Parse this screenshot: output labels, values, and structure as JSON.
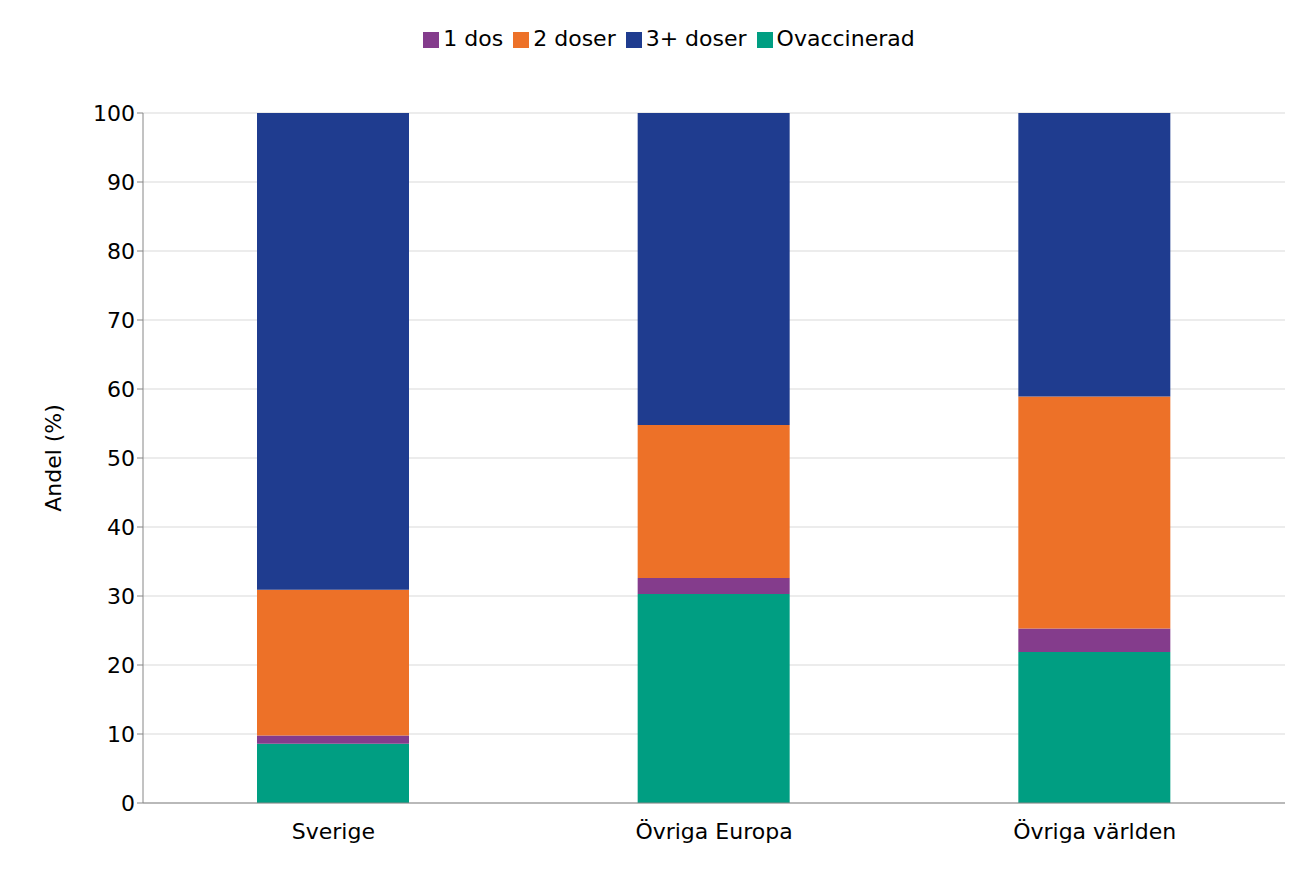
{
  "chart_data": {
    "type": "bar",
    "stacked": true,
    "y_label": "Andel (%)",
    "categories": [
      "Sverige",
      "Övriga Europa",
      "Övriga världen"
    ],
    "series": [
      {
        "name": "Ovaccinerad",
        "color": "#009e82",
        "values": [
          8.6,
          30.3,
          21.9
        ]
      },
      {
        "name": "1 dos",
        "color": "#843c8c",
        "values": [
          1.2,
          2.3,
          3.4
        ]
      },
      {
        "name": "2 doser",
        "color": "#ed7128",
        "values": [
          21.1,
          22.2,
          33.6
        ]
      },
      {
        "name": "3+ doser",
        "color": "#1f3c8f",
        "values": [
          69.1,
          45.2,
          41.1
        ]
      }
    ],
    "ylim": [
      0,
      100
    ],
    "yticks": [
      0,
      10,
      20,
      30,
      40,
      50,
      60,
      70,
      80,
      90,
      100
    ],
    "grid": true,
    "legend": "top"
  }
}
